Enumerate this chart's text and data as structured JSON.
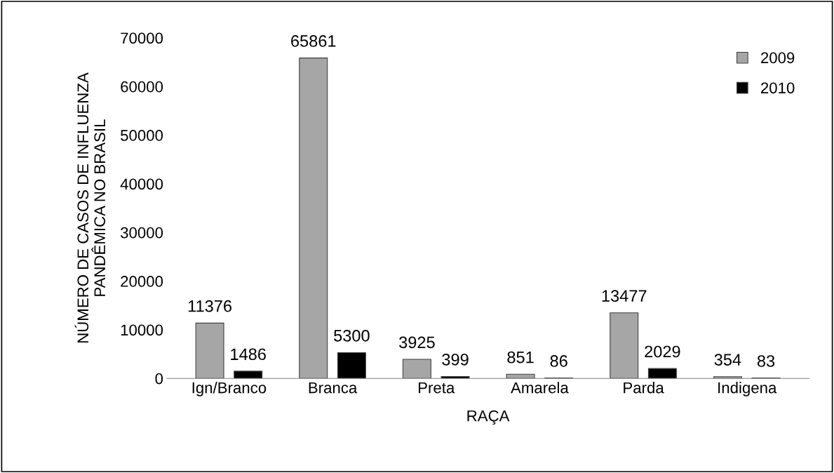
{
  "chart_data": {
    "type": "bar",
    "xlabel": "RAÇA",
    "ylabel": "NÚMERO DE CASOS DE INFLUENZA\nPANDÊMICA NO BRASIL",
    "categories": [
      "Ign/Branco",
      "Branca",
      "Preta",
      "Amarela",
      "Parda",
      "Indigena"
    ],
    "series": [
      {
        "name": "2009",
        "color": "#a6a6a6",
        "values": [
          11376,
          65861,
          3925,
          851,
          13477,
          354
        ]
      },
      {
        "name": "2010",
        "color": "#000000",
        "values": [
          1486,
          5300,
          399,
          86,
          2029,
          83
        ]
      }
    ],
    "ylim": [
      0,
      70000
    ],
    "yticks": [
      0,
      10000,
      20000,
      30000,
      40000,
      50000,
      60000,
      70000
    ],
    "data_labels": true,
    "legend": "top right",
    "grid": false
  }
}
